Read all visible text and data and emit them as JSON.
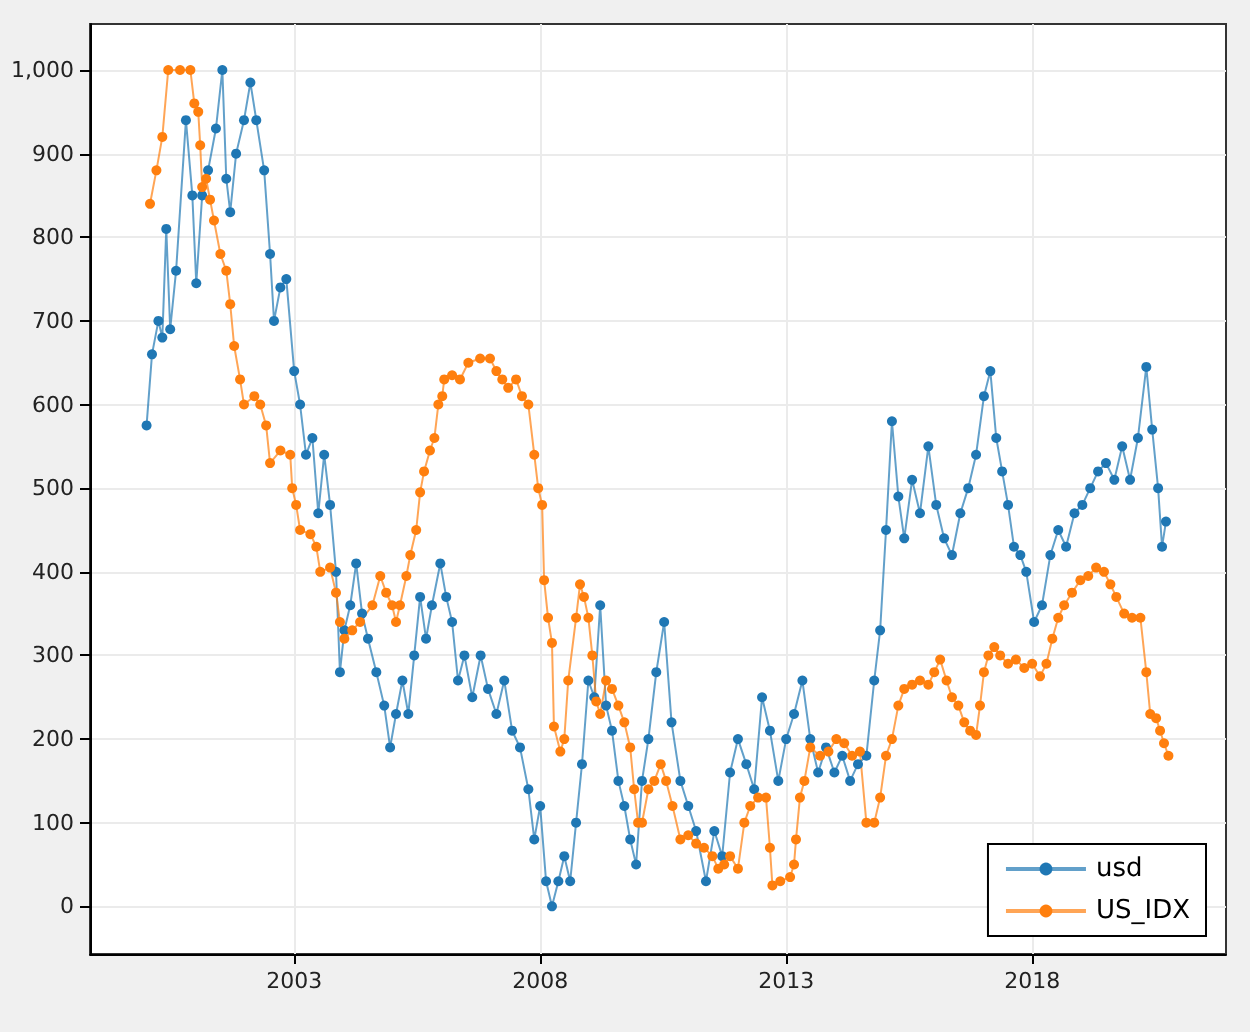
{
  "chart_data": {
    "type": "line",
    "marker": "circle",
    "grid": true,
    "legend": "bottom right",
    "xlim": [
      1998.85,
      2021.94
    ],
    "xticks": [
      2003,
      2008,
      2013,
      2018
    ],
    "ylim": [
      -57,
      1055
    ],
    "yticks": [
      0,
      100,
      200,
      300,
      400,
      500,
      600,
      700,
      800,
      900,
      {
        "value": 1000,
        "label": "1,000"
      }
    ],
    "series": [
      {
        "name": "usd",
        "color": "#1f77b4",
        "x": [
          2000.0,
          2000.11,
          2000.24,
          2000.32,
          2000.4,
          2000.48,
          2000.6,
          2000.8,
          2000.93,
          2001.01,
          2001.13,
          2001.25,
          2001.41,
          2001.54,
          2001.62,
          2001.7,
          2001.82,
          2001.98,
          2002.11,
          2002.23,
          2002.39,
          2002.51,
          2002.59,
          2002.72,
          2002.84,
          2003.0,
          2003.12,
          2003.24,
          2003.37,
          2003.49,
          2003.61,
          2003.73,
          2003.85,
          2003.93,
          2004.02,
          2004.14,
          2004.26,
          2004.38,
          2004.5,
          2004.67,
          2004.83,
          2004.95,
          2005.07,
          2005.2,
          2005.32,
          2005.44,
          2005.56,
          2005.68,
          2005.8,
          2005.97,
          2006.09,
          2006.21,
          2006.33,
          2006.46,
          2006.62,
          2006.79,
          2006.94,
          2007.11,
          2007.27,
          2007.43,
          2007.59,
          2007.76,
          2007.88,
          2008.0,
          2008.12,
          2008.24,
          2008.37,
          2008.49,
          2008.61,
          2008.73,
          2008.85,
          2008.98,
          2009.1,
          2009.22,
          2009.34,
          2009.46,
          2009.59,
          2009.71,
          2009.83,
          2009.95,
          2010.07,
          2010.2,
          2010.36,
          2010.52,
          2010.67,
          2010.85,
          2011.01,
          2011.17,
          2011.37,
          2011.54,
          2011.7,
          2011.86,
          2012.02,
          2012.19,
          2012.35,
          2012.51,
          2012.67,
          2012.84,
          2013.0,
          2013.16,
          2013.33,
          2013.49,
          2013.65,
          2013.81,
          2013.98,
          2014.14,
          2014.3,
          2014.46,
          2014.63,
          2014.79,
          2014.91,
          2015.03,
          2015.15,
          2015.28,
          2015.4,
          2015.56,
          2015.72,
          2015.89,
          2016.05,
          2016.21,
          2016.37,
          2016.54,
          2016.7,
          2016.86,
          2017.02,
          2017.15,
          2017.27,
          2017.39,
          2017.51,
          2017.63,
          2017.76,
          2017.88,
          2018.04,
          2018.2,
          2018.37,
          2018.53,
          2018.69,
          2018.86,
          2019.02,
          2019.18,
          2019.34,
          2019.5,
          2019.67,
          2019.83,
          2019.99,
          2020.15,
          2020.32,
          2020.44,
          2020.56,
          2020.64,
          2020.72
        ],
        "values": [
          575,
          660,
          700,
          680,
          810,
          690,
          760,
          940,
          850,
          745,
          850,
          880,
          930,
          1000,
          870,
          830,
          900,
          940,
          985,
          940,
          880,
          780,
          700,
          740,
          750,
          640,
          600,
          540,
          560,
          470,
          540,
          480,
          400,
          280,
          330,
          360,
          410,
          350,
          320,
          280,
          240,
          190,
          230,
          270,
          230,
          300,
          370,
          320,
          360,
          410,
          370,
          340,
          270,
          300,
          250,
          300,
          260,
          230,
          270,
          210,
          190,
          140,
          80,
          120,
          30,
          0,
          30,
          60,
          30,
          100,
          170,
          270,
          250,
          360,
          240,
          210,
          150,
          120,
          80,
          50,
          150,
          200,
          280,
          340,
          220,
          150,
          120,
          90,
          30,
          90,
          60,
          160,
          200,
          170,
          140,
          250,
          210,
          150,
          200,
          230,
          270,
          200,
          160,
          190,
          160,
          180,
          150,
          170,
          180,
          270,
          330,
          450,
          580,
          490,
          440,
          510,
          470,
          550,
          480,
          440,
          420,
          470,
          500,
          540,
          610,
          640,
          560,
          520,
          480,
          430,
          420,
          400,
          340,
          360,
          420,
          450,
          430,
          470,
          480,
          500,
          520,
          530,
          510,
          550,
          510,
          560,
          645,
          570,
          500,
          430,
          460
        ]
      },
      {
        "name": "US_IDX",
        "color": "#ff7f0e",
        "x": [
          2000.07,
          2000.2,
          2000.32,
          2000.44,
          2000.68,
          2000.89,
          2000.97,
          2001.05,
          2001.09,
          2001.13,
          2001.21,
          2001.29,
          2001.37,
          2001.5,
          2001.62,
          2001.7,
          2001.78,
          2001.9,
          2001.98,
          2002.19,
          2002.31,
          2002.43,
          2002.51,
          2002.72,
          2002.92,
          2002.96,
          2003.04,
          2003.12,
          2003.33,
          2003.45,
          2003.53,
          2003.73,
          2003.85,
          2003.93,
          2004.02,
          2004.18,
          2004.34,
          2004.59,
          2004.75,
          2004.87,
          2004.99,
          2005.07,
          2005.15,
          2005.28,
          2005.36,
          2005.48,
          2005.56,
          2005.64,
          2005.76,
          2005.85,
          2005.93,
          2006.01,
          2006.05,
          2006.21,
          2006.37,
          2006.54,
          2006.78,
          2006.98,
          2007.11,
          2007.23,
          2007.35,
          2007.51,
          2007.63,
          2007.76,
          2007.88,
          2007.96,
          2008.04,
          2008.08,
          2008.16,
          2008.24,
          2008.28,
          2008.41,
          2008.49,
          2008.57,
          2008.73,
          2008.81,
          2008.89,
          2008.98,
          2009.06,
          2009.14,
          2009.22,
          2009.34,
          2009.46,
          2009.59,
          2009.71,
          2009.83,
          2009.91,
          2009.99,
          2010.07,
          2010.2,
          2010.32,
          2010.45,
          2010.56,
          2010.69,
          2010.85,
          2011.01,
          2011.17,
          2011.33,
          2011.5,
          2011.62,
          2011.74,
          2011.86,
          2012.02,
          2012.15,
          2012.27,
          2012.43,
          2012.59,
          2012.67,
          2012.72,
          2012.88,
          2013.08,
          2013.16,
          2013.2,
          2013.28,
          2013.37,
          2013.49,
          2013.69,
          2013.86,
          2014.02,
          2014.18,
          2014.34,
          2014.5,
          2014.63,
          2014.79,
          2014.91,
          2015.03,
          2015.15,
          2015.28,
          2015.4,
          2015.56,
          2015.72,
          2015.89,
          2016.01,
          2016.13,
          2016.26,
          2016.37,
          2016.5,
          2016.62,
          2016.74,
          2016.86,
          2016.94,
          2017.02,
          2017.11,
          2017.23,
          2017.35,
          2017.51,
          2017.67,
          2017.84,
          2018.0,
          2018.16,
          2018.29,
          2018.41,
          2018.53,
          2018.65,
          2018.81,
          2018.98,
          2019.14,
          2019.3,
          2019.46,
          2019.59,
          2019.71,
          2019.87,
          2020.03,
          2020.2,
          2020.32,
          2020.4,
          2020.52,
          2020.6,
          2020.68,
          2020.77
        ],
        "values": [
          840,
          880,
          920,
          1000,
          1000,
          1000,
          960,
          950,
          910,
          860,
          870,
          845,
          820,
          780,
          760,
          720,
          670,
          630,
          600,
          610,
          600,
          575,
          530,
          545,
          540,
          500,
          480,
          450,
          445,
          430,
          400,
          405,
          375,
          340,
          320,
          330,
          340,
          360,
          395,
          375,
          360,
          340,
          360,
          395,
          420,
          450,
          495,
          520,
          545,
          560,
          600,
          610,
          630,
          635,
          630,
          650,
          655,
          655,
          640,
          630,
          620,
          630,
          610,
          600,
          540,
          500,
          480,
          390,
          345,
          315,
          215,
          185,
          200,
          270,
          345,
          385,
          370,
          345,
          300,
          245,
          230,
          270,
          260,
          240,
          220,
          190,
          140,
          100,
          100,
          140,
          150,
          170,
          150,
          120,
          80,
          85,
          75,
          70,
          60,
          45,
          50,
          60,
          45,
          100,
          120,
          130,
          130,
          70,
          25,
          30,
          35,
          50,
          80,
          130,
          150,
          190,
          180,
          185,
          200,
          195,
          180,
          185,
          100,
          100,
          130,
          180,
          200,
          240,
          260,
          265,
          270,
          265,
          280,
          295,
          270,
          250,
          240,
          220,
          210,
          205,
          240,
          280,
          300,
          310,
          300,
          290,
          295,
          285,
          290,
          275,
          290,
          320,
          345,
          360,
          375,
          390,
          395,
          405,
          400,
          385,
          370,
          350,
          345,
          345,
          280,
          230,
          225,
          210,
          195,
          180
        ]
      }
    ]
  }
}
